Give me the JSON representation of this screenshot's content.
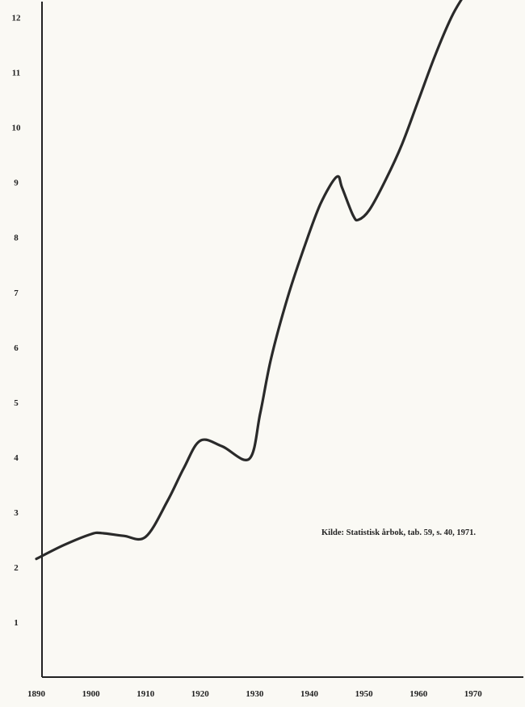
{
  "chart_data": {
    "type": "line",
    "title": "",
    "xlabel": "",
    "ylabel": "",
    "xlim": [
      1890,
      1978
    ],
    "ylim": [
      0,
      12.4
    ],
    "x_ticks": [
      "1890",
      "1900",
      "1910",
      "1920",
      "1930",
      "1940",
      "1950",
      "1960",
      "1970"
    ],
    "y_ticks": [
      "1",
      "2",
      "3",
      "4",
      "5",
      "6",
      "7",
      "8",
      "9",
      "10",
      "11",
      "12"
    ],
    "grid": false,
    "legend": "none",
    "series": [
      {
        "color": "#2a2a2a",
        "x": [
          1890,
          1895,
          1900,
          1902,
          1906,
          1910,
          1914,
          1917,
          1920,
          1924,
          1929,
          1931,
          1933,
          1936,
          1939,
          1942,
          1945,
          1946,
          1948,
          1949,
          1951,
          1954,
          1957,
          1960,
          1963,
          1966,
          1968
        ],
        "values": [
          2.15,
          2.4,
          2.6,
          2.62,
          2.57,
          2.55,
          3.2,
          3.8,
          4.3,
          4.2,
          3.97,
          4.8,
          5.8,
          6.9,
          7.8,
          8.6,
          9.1,
          8.9,
          8.4,
          8.32,
          8.5,
          9.05,
          9.7,
          10.5,
          11.3,
          12.0,
          12.35
        ]
      }
    ],
    "annotations": [
      "Kilde: Statistisk årbok, tab. 59, s. 40, 1971."
    ]
  }
}
